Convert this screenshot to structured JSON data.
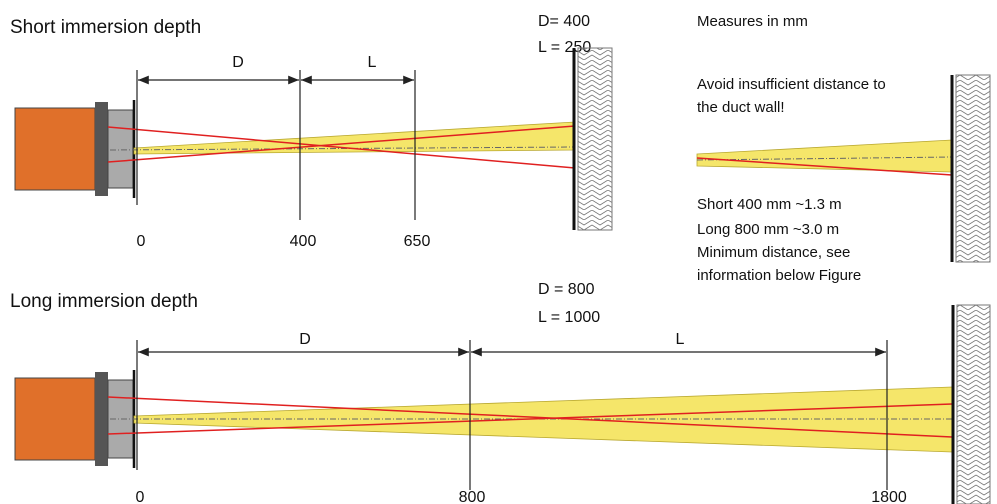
{
  "short": {
    "title": "Short immersion depth",
    "d_label": "D= 400",
    "l_label": "L = 250",
    "dim_d": "D",
    "dim_l": "L",
    "marks": [
      0,
      400,
      650
    ]
  },
  "long": {
    "title": "Long immersion depth",
    "d_label": "D = 800",
    "l_label": "L = 1000",
    "dim_d": "D",
    "dim_l": "L",
    "marks": [
      0,
      800,
      1800
    ]
  },
  "note": {
    "units": "Measures in mm",
    "warning": [
      "Avoid insufficient distance to",
      "the duct wall!"
    ],
    "info": [
      "Short 400 mm ~1.3 m",
      "Long 800 mm ~3.0 m",
      "Minimum distance, see",
      "information below Figure"
    ]
  }
}
